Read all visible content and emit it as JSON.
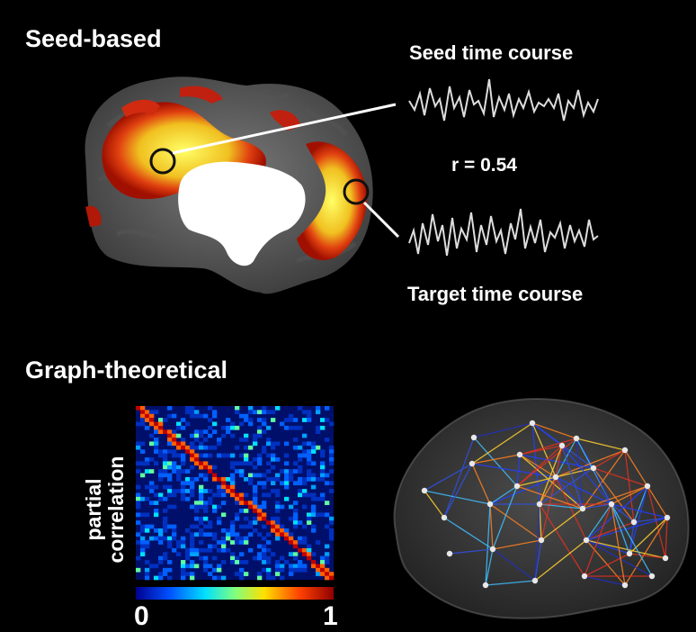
{
  "seed_based": {
    "title": "Seed-based",
    "seed_label": "Seed time course",
    "target_label": "Target time course",
    "correlation": "r = 0.54"
  },
  "graph_theoretical": {
    "title": "Graph-theoretical",
    "matrix_ylabel_line1": "partial",
    "matrix_ylabel_line2": "correlation",
    "colorbar_min": "0",
    "colorbar_max": "1",
    "colorbar_colors": [
      "#00008f",
      "#0050ff",
      "#00dfff",
      "#7fff7f",
      "#ffdf00",
      "#ff4000",
      "#8f0000"
    ]
  },
  "icons": [
    "brain-medial-surface-icon",
    "brain-network-icon"
  ]
}
